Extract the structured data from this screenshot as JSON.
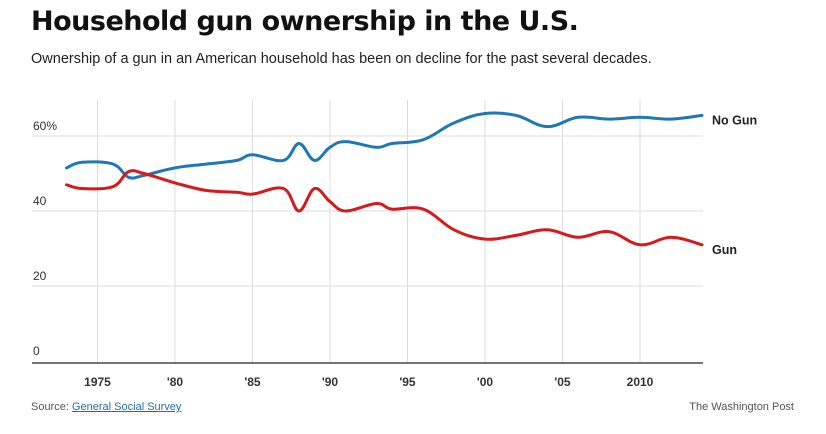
{
  "header": {
    "title": "Household gun ownership in the U.S.",
    "subtitle": "Ownership of a gun in an American household has been on decline for the past several decades."
  },
  "footer": {
    "source_prefix": "Source:",
    "source_link": "General Social Survey",
    "credit": "The Washington Post"
  },
  "chart_data": {
    "type": "line",
    "title": "Household gun ownership in the U.S.",
    "subtitle": "Ownership of a gun in an American household has been on decline for the past several decades.",
    "xlabel": "",
    "ylabel": "",
    "xlim": [
      1971.3,
      2013.9
    ],
    "ylim": [
      0,
      70
    ],
    "grid": true,
    "legend": "direct labels at right end of lines",
    "x_ticks": [
      {
        "value": 1975,
        "label": "1975"
      },
      {
        "value": 1980,
        "label": "'80"
      },
      {
        "value": 1985,
        "label": "'85"
      },
      {
        "value": 1990,
        "label": "'90"
      },
      {
        "value": 1995,
        "label": "'95"
      },
      {
        "value": 2000,
        "label": "'00"
      },
      {
        "value": 2005,
        "label": "'05"
      },
      {
        "value": 2010,
        "label": "2010"
      }
    ],
    "y_ticks": [
      {
        "value": 0,
        "label": "0"
      },
      {
        "value": 20,
        "label": "20"
      },
      {
        "value": 40,
        "label": "40"
      },
      {
        "value": 60,
        "label": "60%"
      }
    ],
    "series": [
      {
        "name": "No Gun",
        "color": "#1f78b4",
        "points": [
          [
            1973,
            51.5
          ],
          [
            1974,
            53
          ],
          [
            1976,
            52.5
          ],
          [
            1977,
            49
          ],
          [
            1978,
            49.5
          ],
          [
            1980,
            51.5
          ],
          [
            1982,
            52.5
          ],
          [
            1984,
            53.5
          ],
          [
            1985,
            55
          ],
          [
            1987,
            53.5
          ],
          [
            1988,
            58
          ],
          [
            1989,
            53.5
          ],
          [
            1990,
            57
          ],
          [
            1991,
            58.5
          ],
          [
            1993,
            57
          ],
          [
            1994,
            58
          ],
          [
            1996,
            59
          ],
          [
            1998,
            63.5
          ],
          [
            2000,
            66
          ],
          [
            2002,
            65.5
          ],
          [
            2004,
            62.5
          ],
          [
            2006,
            65
          ],
          [
            2008,
            64.5
          ],
          [
            2010,
            65
          ],
          [
            2012,
            64.5
          ],
          [
            2014,
            65.5
          ]
        ]
      },
      {
        "name": "Gun",
        "color": "#d7191c",
        "points": [
          [
            1973,
            47
          ],
          [
            1974,
            46
          ],
          [
            1976,
            46.5
          ],
          [
            1977,
            50.5
          ],
          [
            1978,
            50
          ],
          [
            1980,
            47.5
          ],
          [
            1982,
            45.5
          ],
          [
            1984,
            45
          ],
          [
            1985,
            44.5
          ],
          [
            1987,
            46
          ],
          [
            1988,
            40
          ],
          [
            1989,
            46
          ],
          [
            1990,
            42.5
          ],
          [
            1991,
            40
          ],
          [
            1993,
            42
          ],
          [
            1994,
            40.5
          ],
          [
            1996,
            40.5
          ],
          [
            1998,
            35
          ],
          [
            2000,
            32.5
          ],
          [
            2002,
            33.5
          ],
          [
            2004,
            35
          ],
          [
            2006,
            33
          ],
          [
            2008,
            34.5
          ],
          [
            2010,
            31
          ],
          [
            2012,
            33
          ],
          [
            2014,
            31
          ]
        ]
      }
    ]
  }
}
